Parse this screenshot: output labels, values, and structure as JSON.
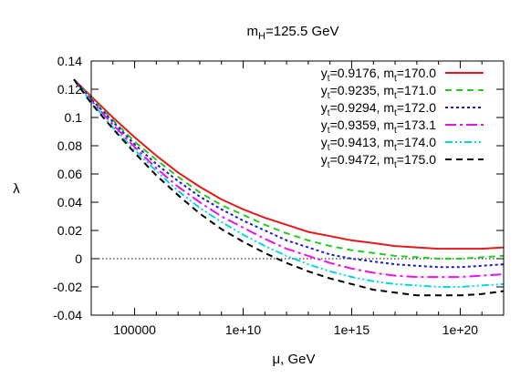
{
  "chart_data": {
    "type": "line",
    "title": {
      "main": "m",
      "sub": "H",
      "rest": "=125.5 GeV"
    },
    "xlabel": "μ, GeV",
    "ylabel": "λ",
    "x_scale": "log10",
    "xlim": [
      1000,
      1e+22
    ],
    "ylim": [
      -0.04,
      0.14
    ],
    "x_ticks": [
      {
        "value": 100000,
        "label": "100000"
      },
      {
        "value": 10000000000.0,
        "label": "1e+10"
      },
      {
        "value": 1000000000000000.0,
        "label": "1e+15"
      },
      {
        "value": 1e+20,
        "label": "1e+20"
      }
    ],
    "y_ticks": [
      {
        "value": 0.14,
        "label": "0.14"
      },
      {
        "value": 0.12,
        "label": "0.12"
      },
      {
        "value": 0.1,
        "label": "0.1"
      },
      {
        "value": 0.08,
        "label": "0.08"
      },
      {
        "value": 0.06,
        "label": "0.06"
      },
      {
        "value": 0.04,
        "label": "0.04"
      },
      {
        "value": 0.02,
        "label": "0.02"
      },
      {
        "value": 0,
        "label": "0"
      },
      {
        "value": -0.02,
        "label": "-0.02"
      },
      {
        "value": -0.04,
        "label": "-0.04"
      }
    ],
    "reference_line": {
      "y": 0,
      "style": "dotted"
    },
    "legend_position": "top-right",
    "series": [
      {
        "name_parts": [
          "y",
          "t",
          "=0.9176, m",
          "t",
          "=170.0"
        ],
        "color": "#e31a1c",
        "dash": "solid",
        "points": [
          [
            2.2,
            0.127
          ],
          [
            3,
            0.115
          ],
          [
            4,
            0.1
          ],
          [
            5,
            0.086
          ],
          [
            6,
            0.073
          ],
          [
            7,
            0.061
          ],
          [
            8,
            0.051
          ],
          [
            9,
            0.042
          ],
          [
            10,
            0.035
          ],
          [
            11,
            0.029
          ],
          [
            12,
            0.024
          ],
          [
            13,
            0.019
          ],
          [
            14,
            0.016
          ],
          [
            15,
            0.013
          ],
          [
            16,
            0.011
          ],
          [
            17,
            0.009
          ],
          [
            18,
            0.008
          ],
          [
            19,
            0.007
          ],
          [
            20,
            0.007
          ],
          [
            21,
            0.007
          ],
          [
            22,
            0.008
          ]
        ]
      },
      {
        "name_parts": [
          "y",
          "t",
          "=0.9235, m",
          "t",
          "=171.0"
        ],
        "color": "#22cc22",
        "dash": "7,5",
        "points": [
          [
            2.2,
            0.127
          ],
          [
            3,
            0.114
          ],
          [
            4,
            0.098
          ],
          [
            5,
            0.083
          ],
          [
            6,
            0.07
          ],
          [
            7,
            0.058
          ],
          [
            8,
            0.047
          ],
          [
            9,
            0.038
          ],
          [
            10,
            0.031
          ],
          [
            11,
            0.024
          ],
          [
            12,
            0.018
          ],
          [
            13,
            0.013
          ],
          [
            14,
            0.009
          ],
          [
            15,
            0.006
          ],
          [
            16,
            0.004
          ],
          [
            17,
            0.002
          ],
          [
            18,
            0.001
          ],
          [
            19,
            0
          ],
          [
            20,
            0
          ],
          [
            21,
            0.001
          ],
          [
            22,
            0.002
          ]
        ]
      },
      {
        "name_parts": [
          "y",
          "t",
          "=0.9294, m",
          "t",
          "=172.0"
        ],
        "color": "#1a1acc",
        "dash": "3,3",
        "points": [
          [
            2.2,
            0.127
          ],
          [
            3,
            0.113
          ],
          [
            4,
            0.097
          ],
          [
            5,
            0.081
          ],
          [
            6,
            0.067
          ],
          [
            7,
            0.055
          ],
          [
            8,
            0.044
          ],
          [
            9,
            0.035
          ],
          [
            10,
            0.027
          ],
          [
            11,
            0.02
          ],
          [
            12,
            0.013
          ],
          [
            13,
            0.008
          ],
          [
            14,
            0.003
          ],
          [
            15,
            0
          ],
          [
            16,
            -0.002
          ],
          [
            17,
            -0.004
          ],
          [
            18,
            -0.005
          ],
          [
            19,
            -0.006
          ],
          [
            20,
            -0.006
          ],
          [
            21,
            -0.005
          ],
          [
            22,
            -0.004
          ]
        ]
      },
      {
        "name_parts": [
          "y",
          "t",
          "=0.9359, m",
          "t",
          "=173.1"
        ],
        "color": "#ee11ee",
        "dash": "12,4,3,4",
        "points": [
          [
            2.2,
            0.127
          ],
          [
            3,
            0.112
          ],
          [
            4,
            0.095
          ],
          [
            5,
            0.079
          ],
          [
            6,
            0.064
          ],
          [
            7,
            0.051
          ],
          [
            8,
            0.04
          ],
          [
            9,
            0.03
          ],
          [
            10,
            0.022
          ],
          [
            11,
            0.014
          ],
          [
            12,
            0.007
          ],
          [
            13,
            0.002
          ],
          [
            14,
            -0.003
          ],
          [
            15,
            -0.007
          ],
          [
            16,
            -0.01
          ],
          [
            17,
            -0.012
          ],
          [
            18,
            -0.013
          ],
          [
            19,
            -0.013
          ],
          [
            20,
            -0.013
          ],
          [
            21,
            -0.012
          ],
          [
            22,
            -0.011
          ]
        ]
      },
      {
        "name_parts": [
          "y",
          "t",
          "=0.9413, m",
          "t",
          "=174.0"
        ],
        "color": "#00d8dc",
        "dash": "8,3,2,3,2,3",
        "points": [
          [
            2.2,
            0.127
          ],
          [
            3,
            0.111
          ],
          [
            4,
            0.093
          ],
          [
            5,
            0.077
          ],
          [
            6,
            0.062
          ],
          [
            7,
            0.048
          ],
          [
            8,
            0.036
          ],
          [
            9,
            0.026
          ],
          [
            10,
            0.017
          ],
          [
            11,
            0.009
          ],
          [
            12,
            0.002
          ],
          [
            13,
            -0.004
          ],
          [
            14,
            -0.009
          ],
          [
            15,
            -0.013
          ],
          [
            16,
            -0.016
          ],
          [
            17,
            -0.018
          ],
          [
            18,
            -0.019
          ],
          [
            19,
            -0.02
          ],
          [
            20,
            -0.02
          ],
          [
            21,
            -0.019
          ],
          [
            22,
            -0.018
          ]
        ]
      },
      {
        "name_parts": [
          "y",
          "t",
          "=0.9472, m",
          "t",
          "=175.0"
        ],
        "color": "#000000",
        "dash": "7,5",
        "points": [
          [
            2.2,
            0.127
          ],
          [
            3,
            0.11
          ],
          [
            4,
            0.092
          ],
          [
            5,
            0.075
          ],
          [
            6,
            0.059
          ],
          [
            7,
            0.045
          ],
          [
            8,
            0.032
          ],
          [
            9,
            0.021
          ],
          [
            10,
            0.012
          ],
          [
            11,
            0.004
          ],
          [
            12,
            -0.003
          ],
          [
            13,
            -0.009
          ],
          [
            14,
            -0.014
          ],
          [
            15,
            -0.018
          ],
          [
            16,
            -0.022
          ],
          [
            17,
            -0.024
          ],
          [
            18,
            -0.026
          ],
          [
            19,
            -0.026
          ],
          [
            20,
            -0.026
          ],
          [
            21,
            -0.025
          ],
          [
            22,
            -0.023
          ]
        ]
      }
    ],
    "x_points_note": "series points are [log10(μ/GeV), λ]"
  }
}
